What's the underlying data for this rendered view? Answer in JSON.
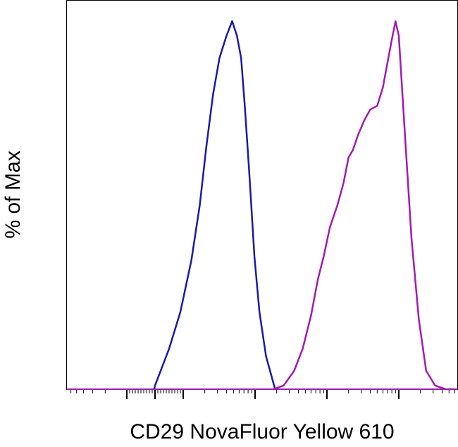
{
  "chart_data": {
    "type": "area",
    "title": "",
    "xlabel": "CD29 NovaFluor Yellow 610",
    "ylabel": "% of Max",
    "x_scale": "log",
    "xlim": [
      -300,
      1000000
    ],
    "ylim": [
      0,
      100
    ],
    "grid": false,
    "legend": "none",
    "series": [
      {
        "color": "#1a1aa6",
        "x": [
          -3,
          0,
          20,
          50,
          90,
          130,
          170,
          210,
          260,
          320,
          400,
          480,
          560,
          640,
          720,
          830,
          980,
          1150,
          1420,
          1900
        ],
        "y": [
          0,
          1,
          5,
          11,
          21,
          35,
          50,
          66,
          80,
          90,
          96,
          100,
          96,
          90,
          77,
          59,
          36,
          21,
          9,
          0
        ]
      },
      {
        "color": "#a21ab4",
        "x": [
          1800,
          2500,
          3500,
          4600,
          6000,
          7500,
          9000,
          11000,
          14000,
          17000,
          20000,
          23000,
          27000,
          33000,
          40000,
          50000,
          60000,
          70000,
          80000,
          90000,
          100000,
          120000,
          150000,
          190000,
          240000,
          320000,
          450000,
          600000
        ],
        "y": [
          0,
          1,
          5,
          11,
          20,
          30,
          36,
          44,
          50,
          56,
          63,
          65,
          69,
          73,
          76,
          77,
          82,
          89,
          95,
          100,
          96,
          71,
          41,
          19,
          5,
          1,
          0,
          0
        ]
      }
    ]
  }
}
